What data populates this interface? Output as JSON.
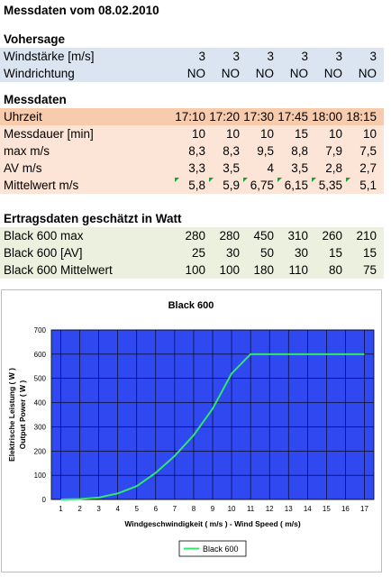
{
  "title": "Messdaten vom 08.02.2010",
  "forecast": {
    "heading": "Vohersage",
    "rows": [
      {
        "label": "Windstärke [m/s]",
        "values": [
          "3",
          "3",
          "3",
          "3",
          "3",
          "3"
        ]
      },
      {
        "label": "Windrichtung",
        "values": [
          "NO",
          "NO",
          "NO",
          "NO",
          "NO",
          "NO"
        ]
      }
    ]
  },
  "measurements": {
    "heading": "Messdaten",
    "time_label": "Uhrzeit",
    "times": [
      "17:10",
      "17:20",
      "17:30",
      "17:45",
      "18:00",
      "18:15"
    ],
    "rows": [
      {
        "label": "Messdauer [min]",
        "values": [
          "10",
          "10",
          "10",
          "15",
          "10",
          "10"
        ]
      },
      {
        "label": "max m/s",
        "values": [
          "8,3",
          "8,3",
          "9,5",
          "8,8",
          "7,9",
          "7,5"
        ]
      },
      {
        "label": "AV m/s",
        "values": [
          "3,3",
          "3,5",
          "4",
          "3,5",
          "2,8",
          "2,7"
        ]
      },
      {
        "label": "Mittelwert m/s",
        "values": [
          "5,8",
          "5,9",
          "6,75",
          "6,15",
          "5,35",
          "5,1"
        ]
      }
    ]
  },
  "yield": {
    "heading": "Ertragsdaten geschätzt in Watt",
    "rows": [
      {
        "label": "Black 600 max",
        "values": [
          "280",
          "280",
          "450",
          "310",
          "260",
          "210"
        ]
      },
      {
        "label": "Black 600 [AV]",
        "values": [
          "25",
          "30",
          "50",
          "30",
          "15",
          "15"
        ]
      },
      {
        "label": "Black 600 Mittelwert",
        "values": [
          "100",
          "100",
          "180",
          "110",
          "80",
          "75"
        ]
      }
    ]
  },
  "chart_data": {
    "type": "line",
    "title": "Black 600",
    "xlabel": "Windgeschwindigkeit ( m/s ) - Wind Speed ( m/s)",
    "ylabel": "Elektrische Leistung ( W )",
    "ylabel2": "Output Power ( W )",
    "x": [
      1,
      2,
      3,
      4,
      5,
      6,
      7,
      8,
      9,
      10,
      11,
      12,
      13,
      14,
      15,
      16,
      17
    ],
    "series": [
      {
        "name": "Black 600",
        "values": [
          0,
          2,
          8,
          25,
          55,
          110,
          180,
          265,
          375,
          520,
          600,
          600,
          600,
          600,
          600,
          600,
          600
        ]
      }
    ],
    "xticks": [
      "1",
      "2",
      "3",
      "4",
      "5",
      "6",
      "7",
      "8",
      "9",
      "10",
      "11",
      "12",
      "13",
      "14",
      "15",
      "16",
      "17"
    ],
    "yticks": [
      "0",
      "100",
      "200",
      "300",
      "400",
      "500",
      "600",
      "700"
    ],
    "ylim": [
      0,
      700
    ],
    "xlim": [
      0.5,
      17.5
    ],
    "grid": true,
    "legend": "bottom",
    "colors": {
      "plot_bg": "#2f48f0",
      "line": "#2ee86a",
      "grid": "#000000"
    }
  }
}
